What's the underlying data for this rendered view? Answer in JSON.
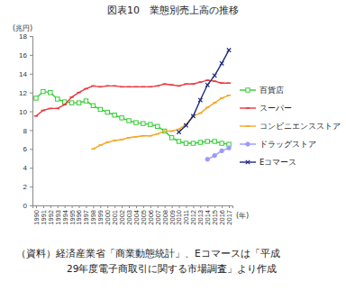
{
  "chart_data": {
    "type": "line",
    "title": "図表10　業態別売上高の推移",
    "y_label": "(兆円)",
    "x_label": "(年)",
    "source": [
      "（資料）経済産業省「商業動態統計」、Eコマースは「平成",
      "29年度電子商取引に関する市場調査」より作成"
    ],
    "categories": [
      "1990",
      "1991",
      "1992",
      "1993",
      "1994",
      "1995",
      "1996",
      "1997",
      "1998",
      "1999",
      "2000",
      "2001",
      "2002",
      "2003",
      "2004",
      "2005",
      "2006",
      "2007",
      "2008",
      "2009",
      "2010",
      "2011",
      "2012",
      "2013",
      "2014",
      "2015",
      "2016",
      "2017"
    ],
    "ylim": [
      0,
      18
    ],
    "yticks": [
      0,
      2,
      4,
      6,
      8,
      10,
      12,
      14,
      16,
      18
    ],
    "grid": false,
    "legend": "right",
    "series": [
      {
        "name": "百貨店",
        "color": "#33cc33",
        "marker": "square",
        "values": [
          11.4,
          12.1,
          12.0,
          11.3,
          11.0,
          10.9,
          10.9,
          11.1,
          10.6,
          10.2,
          9.9,
          9.6,
          9.3,
          9.0,
          8.8,
          8.7,
          8.6,
          8.4,
          7.9,
          7.2,
          6.8,
          6.6,
          6.6,
          6.7,
          6.8,
          6.8,
          6.6,
          6.5
        ]
      },
      {
        "name": "スーパー",
        "color": "#e8383d",
        "marker": "dash",
        "values": [
          9.5,
          10.1,
          10.3,
          10.3,
          10.7,
          11.5,
          12.0,
          12.4,
          12.7,
          12.6,
          12.7,
          12.7,
          12.6,
          12.6,
          12.6,
          12.6,
          12.6,
          12.7,
          12.9,
          12.8,
          12.7,
          12.9,
          12.9,
          13.1,
          13.3,
          13.2,
          13.0,
          13.0
        ]
      },
      {
        "name": "コンビニエンスストア",
        "color": "#f5a623",
        "marker": "dash",
        "values": [
          null,
          null,
          null,
          null,
          null,
          null,
          null,
          null,
          6.0,
          6.4,
          6.7,
          6.9,
          7.0,
          7.2,
          7.3,
          7.4,
          7.4,
          7.6,
          7.9,
          7.9,
          8.1,
          8.6,
          9.5,
          9.8,
          10.4,
          10.9,
          11.4,
          11.7
        ]
      },
      {
        "name": "ドラッグストア",
        "color": "#9999ff",
        "marker": "circle",
        "values": [
          null,
          null,
          null,
          null,
          null,
          null,
          null,
          null,
          null,
          null,
          null,
          null,
          null,
          null,
          null,
          null,
          null,
          null,
          null,
          null,
          null,
          null,
          null,
          null,
          4.9,
          5.3,
          5.8,
          6.1
        ]
      },
      {
        "name": "Eコマース",
        "color": "#1f2a80",
        "marker": "x",
        "values": [
          null,
          null,
          null,
          null,
          null,
          null,
          null,
          null,
          null,
          null,
          null,
          null,
          null,
          null,
          null,
          null,
          null,
          null,
          null,
          null,
          7.8,
          8.5,
          9.5,
          11.2,
          12.8,
          13.8,
          15.1,
          16.5
        ]
      }
    ]
  }
}
